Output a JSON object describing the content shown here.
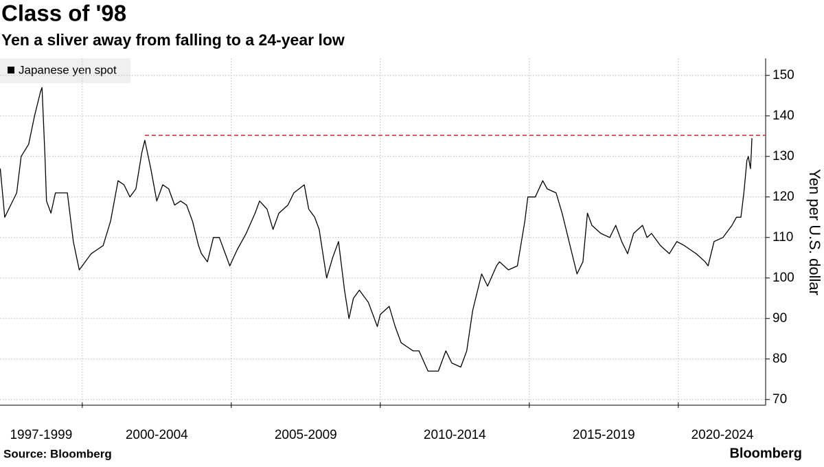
{
  "chart_data": {
    "type": "line",
    "title": "Class of '98",
    "subtitle": "Yen a sliver away from falling to a 24-year low",
    "y_axis_label": "Yen per U.S. dollar",
    "source": "Source: Bloomberg",
    "brand": "Bloomberg",
    "period_labels": [
      "1997-1999",
      "2000-2004",
      "2005-2009",
      "2010-2014",
      "2015-2019",
      "2020-2024"
    ],
    "xlim": [
      1997.24,
      2022.93
    ],
    "xticks": [
      2000,
      2005,
      2010,
      2015,
      2020
    ],
    "ylim": [
      68.6,
      154.2
    ],
    "yticks": [
      70,
      80,
      90,
      100,
      110,
      120,
      130,
      140,
      150
    ],
    "grid": true,
    "legend": "top-left",
    "reference_line": {
      "value": 135.2,
      "x_start": 2002.1,
      "color": "#d9343f",
      "style": "dashed"
    },
    "series": [
      {
        "name": "Japanese yen spot",
        "color": "#000000",
        "x": [
          1997.25,
          1997.4,
          1997.6,
          1997.8,
          1997.95,
          1998.2,
          1998.4,
          1998.6,
          1998.65,
          1998.75,
          1998.8,
          1998.95,
          1999.1,
          1999.3,
          1999.5,
          1999.7,
          1999.9,
          2000.0,
          2000.3,
          2000.5,
          2000.7,
          2000.95,
          2001.2,
          2001.4,
          2001.6,
          2001.8,
          2002.0,
          2002.1,
          2002.3,
          2002.5,
          2002.7,
          2002.9,
          2003.1,
          2003.3,
          2003.5,
          2003.7,
          2003.9,
          2004.0,
          2004.2,
          2004.4,
          2004.6,
          2004.8,
          2004.95,
          2005.2,
          2005.5,
          2005.8,
          2005.95,
          2006.2,
          2006.4,
          2006.6,
          2006.9,
          2007.1,
          2007.45,
          2007.6,
          2007.8,
          2007.95,
          2008.2,
          2008.4,
          2008.6,
          2008.8,
          2008.95,
          2009.1,
          2009.3,
          2009.6,
          2009.9,
          2010.0,
          2010.3,
          2010.5,
          2010.7,
          2010.9,
          2011.1,
          2011.3,
          2011.6,
          2011.8,
          2011.95,
          2012.2,
          2012.4,
          2012.7,
          2012.9,
          2013.1,
          2013.4,
          2013.6,
          2013.9,
          2014.0,
          2014.3,
          2014.6,
          2014.85,
          2014.95,
          2015.2,
          2015.45,
          2015.6,
          2015.9,
          2016.1,
          2016.4,
          2016.6,
          2016.8,
          2016.95,
          2017.1,
          2017.4,
          2017.7,
          2017.9,
          2018.1,
          2018.3,
          2018.5,
          2018.8,
          2018.95,
          2019.1,
          2019.4,
          2019.7,
          2019.95,
          2020.2,
          2020.4,
          2020.6,
          2020.9,
          2021.0,
          2021.2,
          2021.5,
          2021.8,
          2021.95,
          2022.1,
          2022.2,
          2022.3,
          2022.35,
          2022.42,
          2022.45,
          2022.47
        ],
        "values": [
          127,
          115,
          118,
          121,
          130,
          133,
          140,
          146,
          147,
          130,
          119,
          116,
          121,
          121,
          121,
          109,
          102,
          103,
          106,
          107,
          108,
          114,
          124,
          123,
          120,
          122,
          131,
          134,
          127,
          119,
          123,
          122,
          118,
          119,
          118,
          114,
          108,
          106,
          104,
          110,
          110,
          106,
          103,
          107,
          111,
          116,
          119,
          117,
          112,
          116,
          118,
          121,
          123,
          117,
          115,
          112,
          100,
          105,
          109,
          97,
          90,
          95,
          97,
          94,
          88,
          91,
          93,
          88,
          84,
          83,
          82,
          82,
          77,
          77,
          77,
          82,
          79,
          78,
          82,
          92,
          101,
          98,
          103,
          104,
          102,
          103,
          114,
          120,
          120,
          124,
          122,
          121,
          116,
          107,
          101,
          104,
          116,
          113,
          111,
          110,
          113,
          109,
          106,
          111,
          113,
          110,
          111,
          108,
          106,
          109,
          108,
          107,
          106,
          104,
          103,
          109,
          110,
          113,
          115,
          115,
          121,
          129,
          130,
          127,
          131,
          134.5
        ]
      }
    ]
  }
}
